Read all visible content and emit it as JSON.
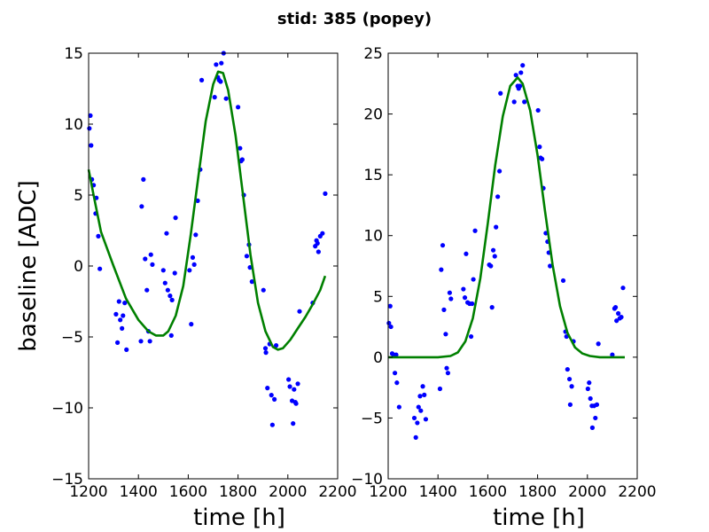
{
  "figure": {
    "suptitle": "stid: 385 (popey)"
  },
  "chart_data": [
    {
      "type": "scatter",
      "xlabel": "time [h]",
      "ylabel": "baseline [ADC]",
      "xlim": [
        1200,
        2200
      ],
      "ylim": [
        -15,
        15
      ],
      "xticks": [
        1200,
        1400,
        1600,
        1800,
        2000,
        2200
      ],
      "yticks": [
        -15,
        -10,
        -5,
        0,
        5,
        10,
        15
      ],
      "xtick_labels": [
        "1200",
        "1400",
        "1600",
        "1800",
        "2000",
        "2200"
      ],
      "ytick_labels": [
        "−15",
        "−10",
        "−5",
        "0",
        "5",
        "10",
        "15"
      ],
      "grid": false,
      "point_color": "#0000ff",
      "fit_color": "#008000",
      "points": [
        [
          1203,
          9.7
        ],
        [
          1207,
          10.6
        ],
        [
          1210,
          8.5
        ],
        [
          1213,
          6.1
        ],
        [
          1220,
          5.7
        ],
        [
          1231,
          4.8
        ],
        [
          1228,
          3.7
        ],
        [
          1239,
          2.1
        ],
        [
          1245,
          -0.2
        ],
        [
          1310,
          -3.4
        ],
        [
          1316,
          -5.4
        ],
        [
          1322,
          -2.5
        ],
        [
          1327,
          -3.8
        ],
        [
          1334,
          -4.4
        ],
        [
          1338,
          -3.5
        ],
        [
          1345,
          -2.6
        ],
        [
          1352,
          -5.9
        ],
        [
          1410,
          -5.3
        ],
        [
          1413,
          4.2
        ],
        [
          1420,
          6.1
        ],
        [
          1427,
          0.5
        ],
        [
          1434,
          -1.7
        ],
        [
          1440,
          -4.6
        ],
        [
          1446,
          -5.3
        ],
        [
          1450,
          0.8
        ],
        [
          1456,
          0.1
        ],
        [
          1500,
          -0.3
        ],
        [
          1507,
          -1.2
        ],
        [
          1513,
          2.3
        ],
        [
          1518,
          -1.7
        ],
        [
          1527,
          -2.1
        ],
        [
          1532,
          -4.9
        ],
        [
          1535,
          -2.4
        ],
        [
          1546,
          -0.5
        ],
        [
          1549,
          3.4
        ],
        [
          1605,
          -0.3
        ],
        [
          1612,
          -4.1
        ],
        [
          1618,
          0.6
        ],
        [
          1624,
          0.1
        ],
        [
          1630,
          2.2
        ],
        [
          1638,
          4.6
        ],
        [
          1648,
          6.8
        ],
        [
          1654,
          13.1
        ],
        [
          1706,
          11.9
        ],
        [
          1712,
          14.2
        ],
        [
          1719,
          13.3
        ],
        [
          1724,
          13.1
        ],
        [
          1730,
          13.0
        ],
        [
          1733,
          14.3
        ],
        [
          1742,
          15.0
        ],
        [
          1752,
          11.8
        ],
        [
          1800,
          11.2
        ],
        [
          1808,
          8.3
        ],
        [
          1812,
          7.4
        ],
        [
          1817,
          7.5
        ],
        [
          1823,
          5.0
        ],
        [
          1835,
          0.7
        ],
        [
          1844,
          1.5
        ],
        [
          1848,
          -0.1
        ],
        [
          1856,
          -1.1
        ],
        [
          1902,
          -1.7
        ],
        [
          1910,
          -5.8
        ],
        [
          1912,
          -6.1
        ],
        [
          1918,
          -8.6
        ],
        [
          1927,
          -5.5
        ],
        [
          1934,
          -9.1
        ],
        [
          1938,
          -11.2
        ],
        [
          1946,
          -9.4
        ],
        [
          1953,
          -5.6
        ],
        [
          2003,
          -8.0
        ],
        [
          2008,
          -8.5
        ],
        [
          2017,
          -9.5
        ],
        [
          2021,
          -11.1
        ],
        [
          2025,
          -8.7
        ],
        [
          2030,
          -9.6
        ],
        [
          2033,
          -9.7
        ],
        [
          2040,
          -8.3
        ],
        [
          2047,
          -3.2
        ],
        [
          2100,
          -2.6
        ],
        [
          2110,
          1.4
        ],
        [
          2115,
          1.8
        ],
        [
          2119,
          1.6
        ],
        [
          2123,
          1.0
        ],
        [
          2130,
          2.1
        ],
        [
          2139,
          2.3
        ],
        [
          2150,
          5.1
        ]
      ],
      "fit": [
        [
          1200,
          6.8
        ],
        [
          1220,
          5.0
        ],
        [
          1250,
          2.4
        ],
        [
          1300,
          0.0
        ],
        [
          1350,
          -2.3
        ],
        [
          1400,
          -3.8
        ],
        [
          1440,
          -4.6
        ],
        [
          1470,
          -4.9
        ],
        [
          1500,
          -4.9
        ],
        [
          1520,
          -4.6
        ],
        [
          1550,
          -3.5
        ],
        [
          1580,
          -1.4
        ],
        [
          1610,
          2.2
        ],
        [
          1640,
          6.2
        ],
        [
          1670,
          10.2
        ],
        [
          1700,
          12.8
        ],
        [
          1720,
          13.7
        ],
        [
          1740,
          13.6
        ],
        [
          1760,
          12.4
        ],
        [
          1790,
          9.2
        ],
        [
          1820,
          5.0
        ],
        [
          1850,
          0.8
        ],
        [
          1880,
          -2.6
        ],
        [
          1910,
          -4.6
        ],
        [
          1940,
          -5.7
        ],
        [
          1960,
          -5.9
        ],
        [
          1980,
          -5.8
        ],
        [
          2010,
          -5.2
        ],
        [
          2040,
          -4.4
        ],
        [
          2070,
          -3.6
        ],
        [
          2100,
          -2.7
        ],
        [
          2130,
          -1.7
        ],
        [
          2150,
          -0.7
        ]
      ]
    },
    {
      "type": "scatter",
      "xlabel": "time [h]",
      "ylabel": "",
      "xlim": [
        1200,
        2200
      ],
      "ylim": [
        -10,
        25
      ],
      "xticks": [
        1200,
        1400,
        1600,
        1800,
        2000,
        2200
      ],
      "yticks": [
        -10,
        -5,
        0,
        5,
        10,
        15,
        20,
        25
      ],
      "xtick_labels": [
        "1200",
        "1400",
        "1600",
        "1800",
        "2000",
        "2200"
      ],
      "ytick_labels": [
        "−10",
        "−5",
        "0",
        "5",
        "10",
        "15",
        "20",
        "25"
      ],
      "grid": false,
      "point_color": "#0000ff",
      "fit_color": "#008000",
      "points": [
        [
          1203,
          2.8
        ],
        [
          1208,
          4.2
        ],
        [
          1211,
          2.5
        ],
        [
          1216,
          0.3
        ],
        [
          1222,
          0.2
        ],
        [
          1227,
          -1.3
        ],
        [
          1232,
          0.2
        ],
        [
          1235,
          -2.1
        ],
        [
          1244,
          -4.1
        ],
        [
          1305,
          -5.0
        ],
        [
          1311,
          -6.6
        ],
        [
          1317,
          -5.4
        ],
        [
          1322,
          -4.1
        ],
        [
          1328,
          -3.2
        ],
        [
          1331,
          -4.4
        ],
        [
          1339,
          -2.4
        ],
        [
          1345,
          -3.1
        ],
        [
          1351,
          -5.1
        ],
        [
          1408,
          -2.6
        ],
        [
          1413,
          7.2
        ],
        [
          1419,
          9.2
        ],
        [
          1424,
          3.9
        ],
        [
          1431,
          1.9
        ],
        [
          1435,
          -0.9
        ],
        [
          1440,
          -1.3
        ],
        [
          1447,
          5.3
        ],
        [
          1452,
          4.8
        ],
        [
          1502,
          5.6
        ],
        [
          1508,
          4.9
        ],
        [
          1513,
          8.5
        ],
        [
          1519,
          4.5
        ],
        [
          1527,
          4.4
        ],
        [
          1533,
          1.7
        ],
        [
          1537,
          4.4
        ],
        [
          1542,
          6.4
        ],
        [
          1549,
          10.4
        ],
        [
          1606,
          7.6
        ],
        [
          1612,
          7.5
        ],
        [
          1617,
          4.1
        ],
        [
          1622,
          8.8
        ],
        [
          1628,
          8.3
        ],
        [
          1633,
          10.7
        ],
        [
          1640,
          13.2
        ],
        [
          1647,
          15.3
        ],
        [
          1651,
          21.7
        ],
        [
          1706,
          21.0
        ],
        [
          1713,
          23.2
        ],
        [
          1720,
          22.3
        ],
        [
          1724,
          22.1
        ],
        [
          1729,
          22.3
        ],
        [
          1733,
          23.4
        ],
        [
          1740,
          24.0
        ],
        [
          1747,
          21.0
        ],
        [
          1802,
          20.3
        ],
        [
          1808,
          17.3
        ],
        [
          1812,
          16.4
        ],
        [
          1818,
          16.3
        ],
        [
          1823,
          13.9
        ],
        [
          1833,
          10.2
        ],
        [
          1840,
          9.5
        ],
        [
          1845,
          8.6
        ],
        [
          1850,
          7.5
        ],
        [
          1903,
          6.3
        ],
        [
          1912,
          2.1
        ],
        [
          1916,
          1.7
        ],
        [
          1920,
          -1.0
        ],
        [
          1928,
          -1.8
        ],
        [
          1931,
          -3.9
        ],
        [
          1937,
          -2.4
        ],
        [
          1944,
          1.3
        ],
        [
          2002,
          -2.6
        ],
        [
          2007,
          -2.1
        ],
        [
          2012,
          -3.4
        ],
        [
          2018,
          -4.0
        ],
        [
          2020,
          -5.8
        ],
        [
          2027,
          -4.0
        ],
        [
          2032,
          -5.0
        ],
        [
          2038,
          -3.9
        ],
        [
          2044,
          1.1
        ],
        [
          2100,
          0.2
        ],
        [
          2109,
          4.0
        ],
        [
          2113,
          4.1
        ],
        [
          2117,
          3.0
        ],
        [
          2124,
          3.6
        ],
        [
          2130,
          3.2
        ],
        [
          2136,
          3.3
        ],
        [
          2143,
          5.7
        ]
      ],
      "fit": [
        [
          1200,
          0.0
        ],
        [
          1300,
          0.0
        ],
        [
          1400,
          0.0
        ],
        [
          1450,
          0.1
        ],
        [
          1480,
          0.4
        ],
        [
          1510,
          1.3
        ],
        [
          1540,
          3.2
        ],
        [
          1570,
          6.5
        ],
        [
          1600,
          11.0
        ],
        [
          1630,
          15.8
        ],
        [
          1660,
          19.8
        ],
        [
          1690,
          22.3
        ],
        [
          1720,
          23.0
        ],
        [
          1740,
          22.5
        ],
        [
          1770,
          20.3
        ],
        [
          1800,
          16.6
        ],
        [
          1830,
          12.0
        ],
        [
          1860,
          7.6
        ],
        [
          1890,
          4.2
        ],
        [
          1920,
          2.0
        ],
        [
          1950,
          0.8
        ],
        [
          1980,
          0.3
        ],
        [
          2010,
          0.1
        ],
        [
          2050,
          0.0
        ],
        [
          2100,
          0.0
        ],
        [
          2150,
          0.0
        ]
      ]
    }
  ]
}
